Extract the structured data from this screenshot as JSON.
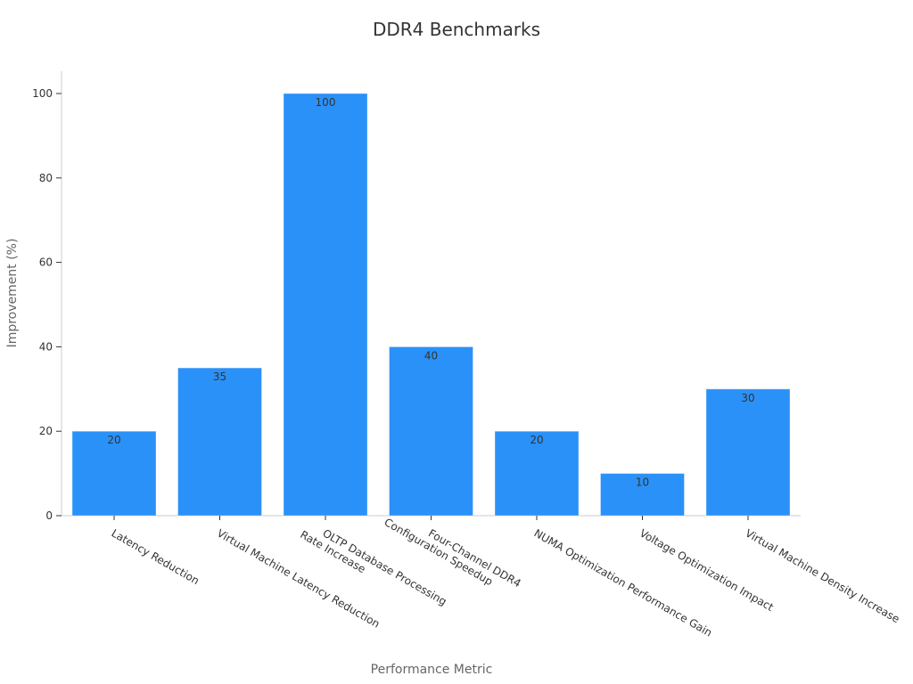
{
  "chart_data": {
    "type": "bar",
    "title": "DDR4 Benchmarks",
    "xlabel": "Performance Metric",
    "ylabel": "Improvement (%)",
    "ylim": [
      0,
      100
    ],
    "yticks": [
      0,
      20,
      40,
      60,
      80,
      100
    ],
    "categories": [
      "Latency Reduction",
      "Virtual Machine Latency Reduction",
      "OLTP Database Processing Rate Increase",
      "Four-Channel DDR4 Configuration Speedup",
      "NUMA Optimization Performance Gain",
      "Voltage Optimization Impact",
      "Virtual Machine Density Increase"
    ],
    "series": [
      {
        "values": [
          20,
          35,
          100,
          40,
          20,
          10,
          30
        ]
      }
    ],
    "bar_color": "#2a91f8",
    "grid": false,
    "legend": "none"
  }
}
